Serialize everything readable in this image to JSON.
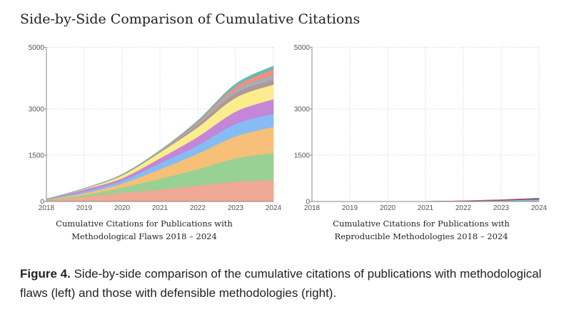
{
  "title": "Side-by-Side Comparison of Cumulative Citations",
  "figure_caption": {
    "label": "Figure 4.",
    "text": " Side-by-side comparison of the cumulative citations of publications with methodological flaws (left) and those with defensible methodologies (right)."
  },
  "chart_data": [
    {
      "type": "area",
      "stacked": true,
      "caption_line1": "Cumulative Citations for Publications with",
      "caption_line2": "Methodological Flaws 2018 – 2024",
      "x": [
        2018,
        2019,
        2020,
        2021,
        2022,
        2023,
        2024
      ],
      "x_ticks": [
        "2018",
        "2019",
        "2020",
        "2021",
        "2022",
        "2023",
        "2024"
      ],
      "y_ticks": [
        "0",
        "1500",
        "3000",
        "5000"
      ],
      "y_tick_values": [
        0,
        1500,
        3000,
        5000
      ],
      "ylim": [
        0,
        5000
      ],
      "grid": true,
      "series": [
        {
          "name": "series-1",
          "color": "#eea48f",
          "values": [
            40,
            155,
            288,
            389,
            521,
            645,
            700
          ]
        },
        {
          "name": "series-2",
          "color": "#93cf8e",
          "values": [
            15,
            55,
            163,
            349,
            528,
            754,
            878
          ]
        },
        {
          "name": "series-3",
          "color": "#f5bd72",
          "values": [
            10,
            62,
            132,
            311,
            505,
            715,
            847
          ]
        },
        {
          "name": "series-4",
          "color": "#7fb8f2",
          "values": [
            5,
            54,
            93,
            195,
            272,
            412,
            427
          ]
        },
        {
          "name": "series-5",
          "color": "#c27ed6",
          "values": [
            5,
            63,
            78,
            155,
            272,
            389,
            466
          ]
        },
        {
          "name": "series-6",
          "color": "#fbec88",
          "values": [
            3,
            23,
            93,
            194,
            311,
            450,
            475
          ]
        },
        {
          "name": "series-7",
          "color": "#a89592",
          "values": [
            0,
            4,
            13,
            24,
            78,
            148,
            155
          ]
        },
        {
          "name": "series-8",
          "color": "#a3aab5",
          "values": [
            0,
            4,
            10,
            15,
            54,
            101,
            156
          ]
        },
        {
          "name": "series-9",
          "color": "#ef8a7f",
          "values": [
            0,
            3,
            5,
            16,
            47,
            117,
            194
          ]
        },
        {
          "name": "series-10",
          "color": "#5ab9ae",
          "values": [
            0,
            2,
            5,
            7,
            31,
            77,
            93
          ]
        }
      ]
    },
    {
      "type": "area",
      "stacked": true,
      "caption_line1": "Cumulative Citations for Publications with",
      "caption_line2": "Reproducible Methodologies 2018 – 2024",
      "x": [
        2018,
        2019,
        2020,
        2021,
        2022,
        2023,
        2024
      ],
      "x_ticks": [
        "2018",
        "2019",
        "2020",
        "2021",
        "2022",
        "2023",
        "2024"
      ],
      "y_ticks": [
        "0",
        "1500",
        "3000",
        "5000"
      ],
      "y_tick_values": [
        0,
        1500,
        3000,
        5000
      ],
      "ylim": [
        0,
        5000
      ],
      "grid": true,
      "series": [
        {
          "name": "series-1",
          "color": "#8fbcd4",
          "values": [
            0,
            0,
            1,
            3,
            15,
            38,
            72
          ]
        },
        {
          "name": "series-2",
          "color": "#4a4560",
          "values": [
            0,
            0,
            0,
            1,
            6,
            16,
            30
          ]
        },
        {
          "name": "series-3",
          "color": "#e0707a",
          "values": [
            1,
            1,
            1,
            2,
            4,
            7,
            10
          ]
        }
      ]
    }
  ]
}
